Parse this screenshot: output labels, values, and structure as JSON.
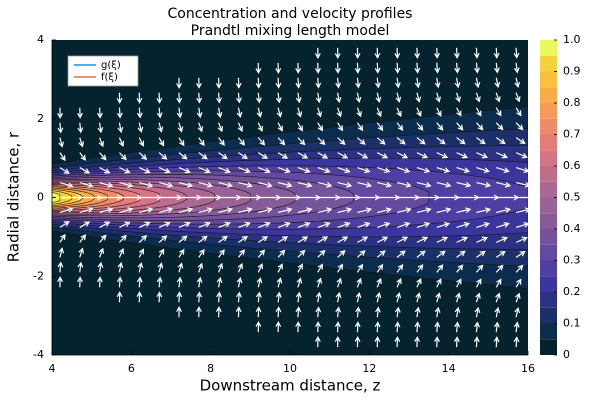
{
  "chart_data": {
    "type": "contourf",
    "title": "Concentration and velocity profiles",
    "subtitle": "Prandtl mixing length model",
    "xlabel": "Downstream distance, z",
    "ylabel": "Radial distance, r",
    "xlim": [
      4,
      16
    ],
    "xticks": [
      4,
      6,
      8,
      10,
      12,
      14,
      16
    ],
    "ylim": [
      -4,
      4
    ],
    "yticks": [
      -4,
      -2,
      0,
      2,
      4
    ],
    "colorbar_lim": [
      0,
      1
    ],
    "colorbar_ticks": [
      0,
      0.1,
      0.2,
      0.3,
      0.4,
      0.5,
      0.6,
      0.7,
      0.8,
      0.9,
      {
        "value": 1,
        "label": "1.0"
      }
    ],
    "levels": [
      0,
      0.05,
      0.1,
      0.15,
      0.2,
      0.25,
      0.3,
      0.35,
      0.4,
      0.45,
      0.5,
      0.55,
      0.6,
      0.65,
      0.7,
      0.75,
      0.8,
      0.85,
      0.9,
      0.95,
      1
    ],
    "colors": [
      "#04232e",
      "#0c2c4e",
      "#1b3068",
      "#2b3183",
      "#3b359e",
      "#4f3fa3",
      "#634a9f",
      "#74539b",
      "#865b98",
      "#996196",
      "#ab6892",
      "#c06d8c",
      "#d47485",
      "#e47d78",
      "#ef8a68",
      "#f59b58",
      "#f9ad49",
      "#fac03d",
      "#f2d43a",
      "#e8fa5b"
    ],
    "legend_position": "top-left",
    "legend": [
      {
        "name": "g(ξ)",
        "color": "#009af9"
      },
      {
        "name": "f(ξ)",
        "color": "#e26f46"
      }
    ]
  }
}
